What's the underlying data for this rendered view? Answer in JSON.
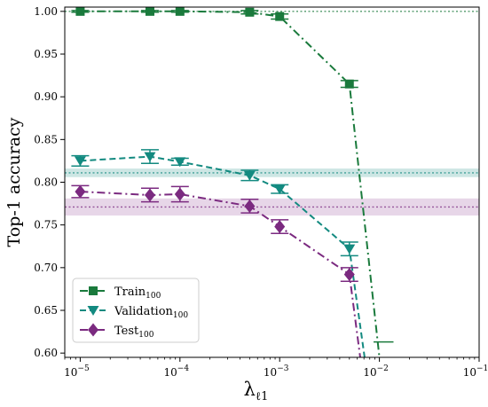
{
  "chart_data": {
    "type": "line",
    "title": "",
    "xlabel": "λ",
    "xlabel_sub": "ℓ1",
    "ylabel": "Top-1 accuracy",
    "xscale": "log",
    "xlim": [
      7e-06,
      0.1
    ],
    "ylim": [
      0.595,
      1.005
    ],
    "x_ticks": [
      1e-05,
      0.0001,
      0.001,
      0.01,
      0.1
    ],
    "x_tick_labels": [
      {
        "base": "10",
        "exp": "−5"
      },
      {
        "base": "10",
        "exp": "−4"
      },
      {
        "base": "10",
        "exp": "−3"
      },
      {
        "base": "10",
        "exp": "−2"
      },
      {
        "base": "10",
        "exp": "−1"
      }
    ],
    "y_ticks": [
      0.6,
      0.65,
      0.7,
      0.75,
      0.8,
      0.85,
      0.9,
      0.95,
      1.0
    ],
    "y_tick_labels": [
      "0.60",
      "0.65",
      "0.70",
      "0.75",
      "0.80",
      "0.85",
      "0.90",
      "0.95",
      "1.00"
    ],
    "grid": false,
    "legend_position": "bottom-left",
    "series": [
      {
        "name": "Train",
        "name_sub": "100",
        "color": "#1a7a3c",
        "marker": "square",
        "dash": "dashdot",
        "x": [
          1e-05,
          5e-05,
          0.0001,
          0.0005,
          0.001,
          0.005,
          0.01
        ],
        "y": [
          1.0,
          1.0,
          1.0,
          0.999,
          0.994,
          0.915,
          0.595
        ],
        "err": [
          0.001,
          0.001,
          0.001,
          0.002,
          0.003,
          0.004,
          0
        ],
        "marker_shown": [
          true,
          true,
          true,
          true,
          true,
          true,
          false
        ],
        "reference": 1.0,
        "reference_band": 0.0
      },
      {
        "name": "Validation",
        "name_sub": "100",
        "color": "#138a80",
        "marker": "triangle-down",
        "dash": "dashed",
        "x": [
          1e-05,
          5e-05,
          0.0001,
          0.0005,
          0.001,
          0.005,
          0.0072
        ],
        "y": [
          0.825,
          0.83,
          0.824,
          0.808,
          0.792,
          0.722,
          0.59
        ],
        "err": [
          0.006,
          0.008,
          0.004,
          0.006,
          0.005,
          0.008,
          0
        ],
        "marker_shown": [
          true,
          true,
          true,
          true,
          true,
          true,
          false
        ],
        "reference": 0.811,
        "reference_band": 0.005,
        "band_color": "#cde6e4"
      },
      {
        "name": "Test",
        "name_sub": "100",
        "color": "#7b2a80",
        "marker": "diamond",
        "dash": "dashdot",
        "x": [
          1e-05,
          5e-05,
          0.0001,
          0.0005,
          0.001,
          0.005,
          0.0065
        ],
        "y": [
          0.789,
          0.785,
          0.786,
          0.772,
          0.748,
          0.692,
          0.59
        ],
        "err": [
          0.007,
          0.008,
          0.009,
          0.008,
          0.008,
          0.008,
          0
        ],
        "marker_shown": [
          true,
          true,
          true,
          true,
          true,
          true,
          false
        ],
        "reference": 0.771,
        "reference_band": 0.01,
        "band_color": "#e7d6e8"
      }
    ],
    "annotations": [
      {
        "x": 0.011,
        "y": 0.613,
        "width_decades": 0.2,
        "color": "#1a7a3c"
      }
    ]
  }
}
